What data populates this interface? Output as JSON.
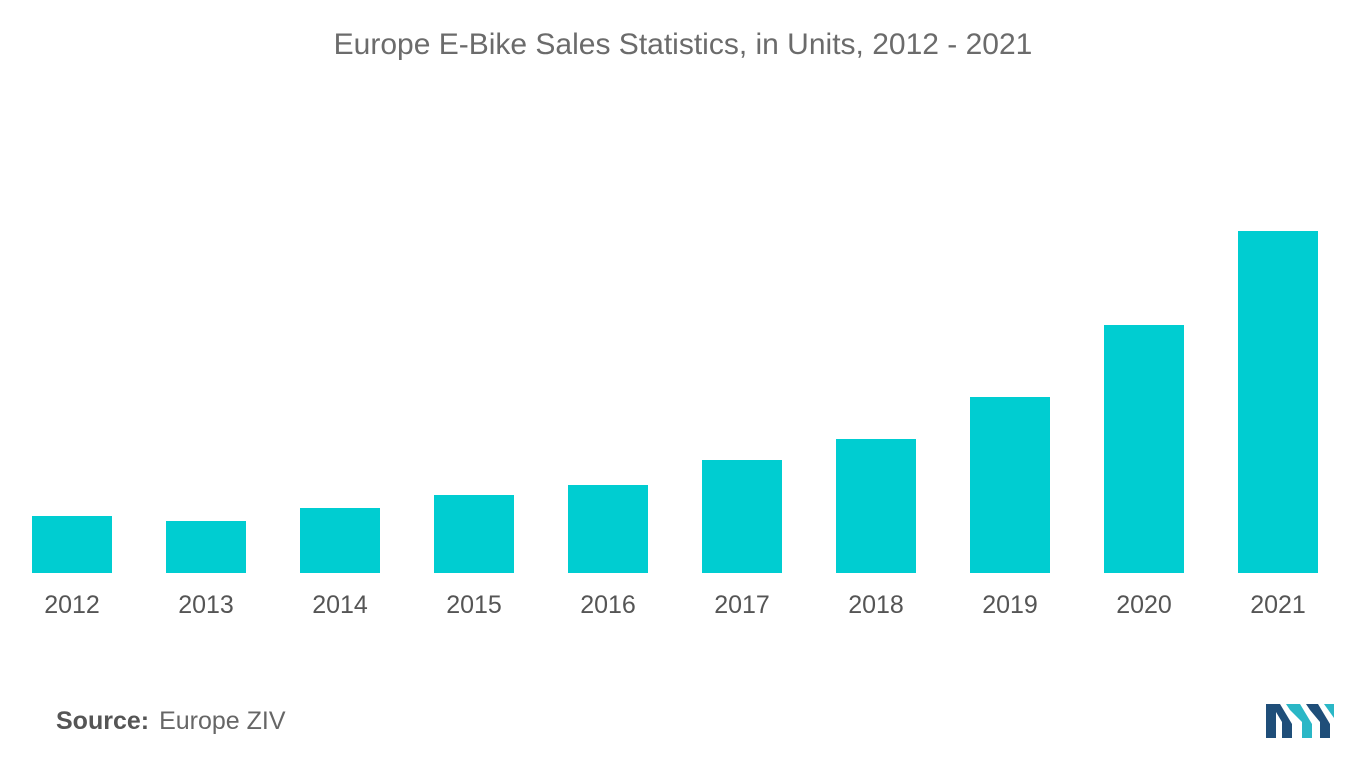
{
  "title": "Europe E-Bike Sales Statistics, in Units, 2012 - 2021",
  "source": {
    "label": "Source:",
    "value": "Europe ZIV"
  },
  "colors": {
    "bar": "#00cdd1",
    "logo_dark": "#1f4e79",
    "logo_teal": "#2ab7c6"
  },
  "logo": {
    "icon": "mordor-intelligence-logo-icon"
  },
  "chart_data": {
    "type": "bar",
    "title": "Europe E-Bike Sales Statistics, in Units, 2012 - 2021",
    "xlabel": "",
    "ylabel": "",
    "categories": [
      "2012",
      "2013",
      "2014",
      "2015",
      "2016",
      "2017",
      "2018",
      "2019",
      "2020",
      "2021"
    ],
    "values": [
      57,
      52,
      65,
      78,
      88,
      113,
      134,
      176,
      248,
      342
    ],
    "ylim": [
      0,
      400
    ],
    "grid": false,
    "legend": "none"
  }
}
